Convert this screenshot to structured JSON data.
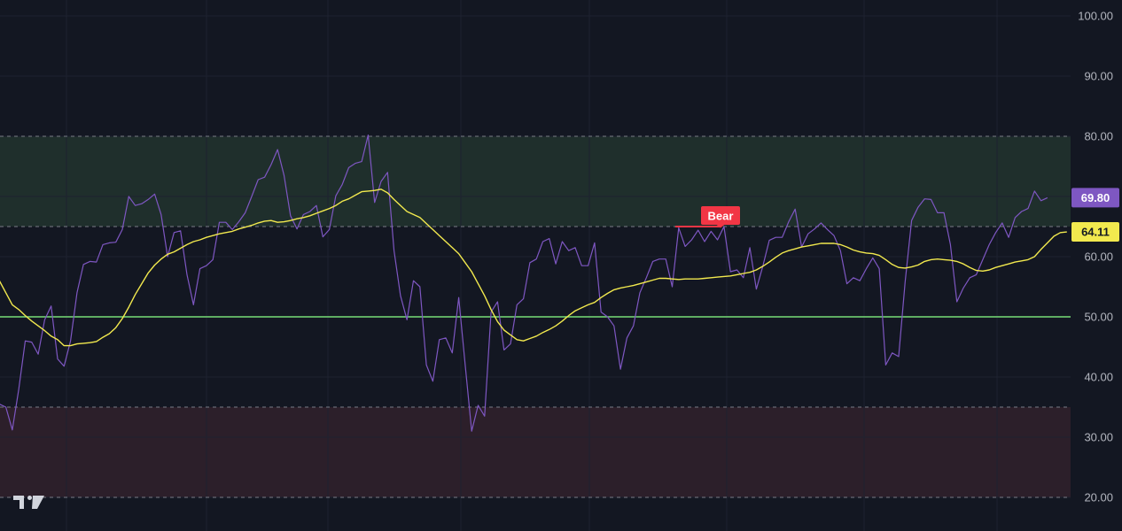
{
  "chart_data": {
    "type": "line",
    "y_axis": {
      "range": [
        20,
        100
      ],
      "ticks": [
        "20.00",
        "30.00",
        "40.00",
        "50.00",
        "60.00",
        "70.00",
        "80.00",
        "90.00",
        "100.00"
      ],
      "position": "right"
    },
    "grid": true,
    "bands": [
      {
        "from": 65,
        "to": 80,
        "color": "#1f2f2c"
      },
      {
        "from": 20,
        "to": 35,
        "color": "#2c1f2a"
      }
    ],
    "reference_lines": [
      {
        "y": 80,
        "style": "dashed",
        "color": "#787b86"
      },
      {
        "y": 65,
        "style": "dashed",
        "color": "#787b86"
      },
      {
        "y": 35,
        "style": "dashed",
        "color": "#787b86"
      },
      {
        "y": 20,
        "style": "dashed",
        "color": "#787b86"
      },
      {
        "y": 50,
        "style": "solid",
        "color": "#77dd77"
      }
    ],
    "series": [
      {
        "color": "#7e57c2",
        "last_value_label": "69.80",
        "values": [
          38,
          35.5,
          35,
          31.2,
          38,
          46,
          45.8,
          43.8,
          49.5,
          51.8,
          43,
          41.8,
          46,
          54,
          58.7,
          59.2,
          59.1,
          62,
          62.3,
          62.4,
          64.5,
          70,
          68.5,
          68.8,
          69.5,
          70.4,
          67,
          60,
          64,
          64.3,
          57,
          52,
          58,
          58.5,
          59.5,
          65.7,
          65.7,
          64.5,
          65.8,
          67.3,
          70,
          72.8,
          73.2,
          75.3,
          77.8,
          73.5,
          66.8,
          64.6,
          67,
          67.5,
          68.5,
          63.3,
          64.5,
          70.1,
          72,
          74.8,
          75.5,
          75.8,
          80.2,
          69,
          72.5,
          74,
          61,
          53.5,
          49.5,
          56,
          55,
          42,
          39.3,
          46.2,
          46.5,
          44,
          53.2,
          42,
          31,
          35.3,
          33.5,
          50.8,
          52.5,
          44.5,
          45.5,
          52,
          53,
          59,
          59.6,
          62.5,
          63,
          58.8,
          62.5,
          61,
          61.5,
          58.5,
          58.5,
          62.3,
          50.8,
          50,
          48.5,
          41.3,
          46.5,
          48.5,
          54,
          56.5,
          59.2,
          59.6,
          59.6,
          55,
          64.8,
          61.7,
          62.8,
          64.4,
          62.5,
          64.2,
          62.8,
          65,
          57.5,
          57.8,
          56.5,
          61.5,
          54.6,
          58.4,
          62.7,
          63.2,
          63.2,
          65.8,
          67.9,
          61.6,
          63.8,
          64.6,
          65.6,
          64.5,
          63.5,
          61,
          55.5,
          56.5,
          56,
          58,
          59.8,
          58,
          42,
          44,
          43.4,
          55.8,
          66,
          68.2,
          69.6,
          69.5,
          67.3,
          67.3,
          62,
          52.5,
          54.8,
          56.5,
          57,
          59.5,
          62,
          64,
          65.6,
          63.2,
          66.5,
          67.5,
          68,
          70.9,
          69.3,
          69.8
        ]
      },
      {
        "color": "#f2e94e",
        "last_value_label": "64.11",
        "values": [
          57.2,
          56,
          54,
          52,
          51.2,
          50.2,
          49.3,
          48.5,
          47.7,
          46.8,
          46.2,
          45.2,
          45.2,
          45.5,
          45.6,
          45.7,
          45.9,
          46.6,
          47.2,
          48.2,
          49.7,
          51.6,
          53.7,
          55.5,
          57.3,
          58.6,
          59.6,
          60.4,
          60.8,
          61.4,
          62,
          62.5,
          62.8,
          63.2,
          63.5,
          63.8,
          64,
          64.2,
          64.6,
          64.9,
          65.2,
          65.6,
          65.9,
          66,
          65.7,
          65.8,
          66,
          66.3,
          66.5,
          66.8,
          67.2,
          67.6,
          68,
          68.5,
          69.2,
          69.6,
          70.2,
          70.8,
          70.9,
          71,
          71.2,
          70.6,
          69.5,
          68.5,
          67.5,
          67,
          66.5,
          65.5,
          64.5,
          63.5,
          62.5,
          61.5,
          60.5,
          59,
          57.5,
          55.5,
          53.5,
          51.2,
          49.2,
          47.8,
          47,
          46.2,
          46,
          46.4,
          46.8,
          47.4,
          47.9,
          48.5,
          49.3,
          50.2,
          51,
          51.5,
          52,
          52.4,
          53.2,
          53.9,
          54.5,
          54.8,
          55,
          55.2,
          55.5,
          55.8,
          56.1,
          56.4,
          56.4,
          56.3,
          56.2,
          56.3,
          56.3,
          56.3,
          56.4,
          56.5,
          56.6,
          56.7,
          56.8,
          57,
          57.2,
          57.4,
          57.8,
          58.4,
          59.1,
          59.9,
          60.6,
          61,
          61.3,
          61.6,
          61.8,
          62,
          62.2,
          62.2,
          62.2,
          62,
          61.6,
          61.1,
          60.8,
          60.6,
          60.5,
          60.2,
          59.5,
          58.7,
          58.2,
          58.1,
          58.3,
          58.6,
          59.2,
          59.5,
          59.6,
          59.5,
          59.4,
          59.2,
          58.8,
          58.2,
          57.7,
          57.6,
          57.8,
          58.2,
          58.5,
          58.8,
          59.1,
          59.3,
          59.5,
          60,
          61.2,
          62.3,
          63.4,
          64,
          64.11
        ]
      }
    ],
    "annotations": [
      {
        "text": "Bear",
        "y": 65,
        "color": "#f23645"
      }
    ]
  },
  "branding": {
    "logo": "TradingView logo"
  }
}
